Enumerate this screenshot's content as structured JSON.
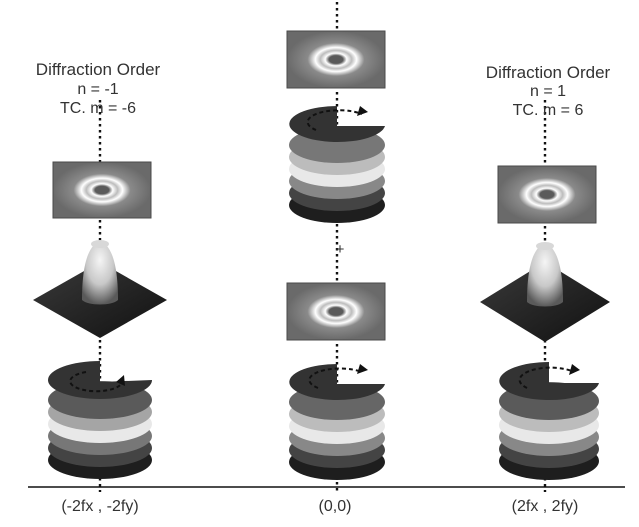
{
  "left_order": {
    "title": "Diffraction Order",
    "n": "n = -1",
    "tc": "TC.  m = -6"
  },
  "right_order": {
    "title": "Diffraction Order",
    "n": "n = 1",
    "tc": "TC.  m = 6"
  },
  "plus_sign": "+",
  "axis_labels": [
    "(-2fx , -2fy)",
    "(0,0)",
    "(2fx , 2fy)"
  ],
  "colors": {
    "ink": "#1a1a1a",
    "plate": "#6a6a6a",
    "disk_light": "#e6e6e6",
    "disk_mid": "#b5b5b5",
    "disk_dark": "#3a3a3a"
  }
}
